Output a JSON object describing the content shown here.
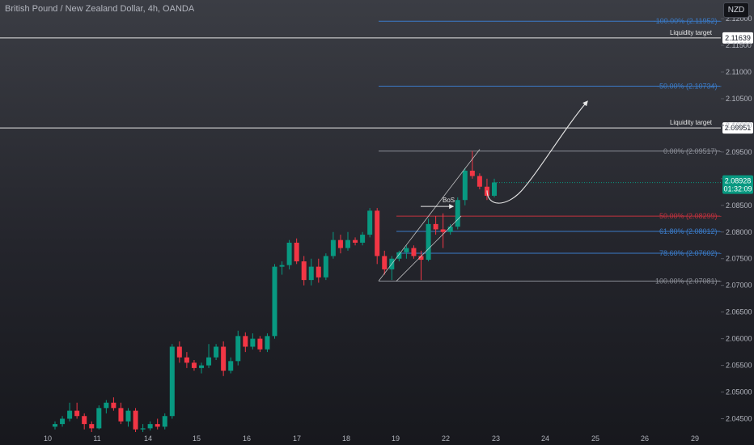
{
  "header": {
    "title": "British Pound / New Zealand Dollar, 4h, OANDA",
    "currency": "NZD"
  },
  "colors": {
    "background": "#1b1c22",
    "up": "#089981",
    "down": "#f23645",
    "fib_blue": "#3a7bc8",
    "fib_red": "#c2313d",
    "fib_gray": "#8a8d96",
    "white": "#e6e6e6",
    "badge_green": "#089981"
  },
  "chart_data": {
    "type": "candlestick",
    "symbol": "GBPNZD",
    "timeframe": "4h",
    "ylim": [
      2.0425,
      2.1235
    ],
    "x_ticks": [
      "10",
      "11",
      "14",
      "15",
      "16",
      "17",
      "18",
      "19",
      "22",
      "23",
      "24",
      "25",
      "26",
      "29"
    ],
    "y_ticks": [
      2.045,
      2.05,
      2.055,
      2.06,
      2.065,
      2.07,
      2.075,
      2.08,
      2.085,
      2.09,
      2.095,
      2.1,
      2.105,
      2.11,
      2.115,
      2.12
    ],
    "y_tick_labels": [
      "2.04500",
      "2.05000",
      "2.05500",
      "2.06000",
      "2.06500",
      "2.07000",
      "2.07500",
      "2.08000",
      "2.08500",
      "2.09000",
      "2.09500",
      "2.10000",
      "2.10500",
      "2.11000",
      "2.11500",
      "2.12000"
    ],
    "candles": [
      {
        "o": 2.0435,
        "h": 2.0445,
        "l": 2.043,
        "c": 2.044
      },
      {
        "o": 2.044,
        "h": 2.0455,
        "l": 2.0435,
        "c": 2.045
      },
      {
        "o": 2.045,
        "h": 2.048,
        "l": 2.0445,
        "c": 2.0465
      },
      {
        "o": 2.0465,
        "h": 2.048,
        "l": 2.045,
        "c": 2.0455
      },
      {
        "o": 2.0455,
        "h": 2.046,
        "l": 2.043,
        "c": 2.044
      },
      {
        "o": 2.044,
        "h": 2.0445,
        "l": 2.0425,
        "c": 2.0432
      },
      {
        "o": 2.0432,
        "h": 2.0475,
        "l": 2.043,
        "c": 2.047
      },
      {
        "o": 2.047,
        "h": 2.0485,
        "l": 2.046,
        "c": 2.048
      },
      {
        "o": 2.048,
        "h": 2.049,
        "l": 2.0465,
        "c": 2.047
      },
      {
        "o": 2.047,
        "h": 2.048,
        "l": 2.044,
        "c": 2.0445
      },
      {
        "o": 2.0445,
        "h": 2.047,
        "l": 2.0435,
        "c": 2.0465
      },
      {
        "o": 2.0465,
        "h": 2.047,
        "l": 2.0425,
        "c": 2.043
      },
      {
        "o": 2.043,
        "h": 2.044,
        "l": 2.0425,
        "c": 2.0432
      },
      {
        "o": 2.0432,
        "h": 2.0445,
        "l": 2.0428,
        "c": 2.044
      },
      {
        "o": 2.044,
        "h": 2.045,
        "l": 2.043,
        "c": 2.0435
      },
      {
        "o": 2.0435,
        "h": 2.046,
        "l": 2.043,
        "c": 2.0455
      },
      {
        "o": 2.0455,
        "h": 2.059,
        "l": 2.045,
        "c": 2.0585
      },
      {
        "o": 2.0585,
        "h": 2.0595,
        "l": 2.0555,
        "c": 2.0565
      },
      {
        "o": 2.0565,
        "h": 2.0575,
        "l": 2.0545,
        "c": 2.0555
      },
      {
        "o": 2.0555,
        "h": 2.056,
        "l": 2.054,
        "c": 2.0545
      },
      {
        "o": 2.0545,
        "h": 2.0555,
        "l": 2.0535,
        "c": 2.055
      },
      {
        "o": 2.055,
        "h": 2.059,
        "l": 2.0545,
        "c": 2.0565
      },
      {
        "o": 2.0565,
        "h": 2.059,
        "l": 2.056,
        "c": 2.0585
      },
      {
        "o": 2.0585,
        "h": 2.0595,
        "l": 2.053,
        "c": 2.054
      },
      {
        "o": 2.054,
        "h": 2.0565,
        "l": 2.0535,
        "c": 2.0558
      },
      {
        "o": 2.0558,
        "h": 2.0615,
        "l": 2.055,
        "c": 2.0605
      },
      {
        "o": 2.0605,
        "h": 2.0612,
        "l": 2.0575,
        "c": 2.0585
      },
      {
        "o": 2.0585,
        "h": 2.061,
        "l": 2.058,
        "c": 2.06
      },
      {
        "o": 2.06,
        "h": 2.0605,
        "l": 2.0575,
        "c": 2.058
      },
      {
        "o": 2.058,
        "h": 2.061,
        "l": 2.0575,
        "c": 2.0605
      },
      {
        "o": 2.0605,
        "h": 2.074,
        "l": 2.06,
        "c": 2.0735
      },
      {
        "o": 2.0735,
        "h": 2.0745,
        "l": 2.072,
        "c": 2.0738
      },
      {
        "o": 2.0738,
        "h": 2.0785,
        "l": 2.073,
        "c": 2.078
      },
      {
        "o": 2.078,
        "h": 2.0788,
        "l": 2.074,
        "c": 2.0745
      },
      {
        "o": 2.0745,
        "h": 2.0755,
        "l": 2.07,
        "c": 2.071
      },
      {
        "o": 2.071,
        "h": 2.075,
        "l": 2.07,
        "c": 2.0735
      },
      {
        "o": 2.0735,
        "h": 2.075,
        "l": 2.0705,
        "c": 2.0715
      },
      {
        "o": 2.0715,
        "h": 2.076,
        "l": 2.071,
        "c": 2.0755
      },
      {
        "o": 2.0755,
        "h": 2.08,
        "l": 2.075,
        "c": 2.0785
      },
      {
        "o": 2.0785,
        "h": 2.0795,
        "l": 2.076,
        "c": 2.077
      },
      {
        "o": 2.077,
        "h": 2.08,
        "l": 2.0765,
        "c": 2.0785
      },
      {
        "o": 2.0785,
        "h": 2.079,
        "l": 2.0775,
        "c": 2.078
      },
      {
        "o": 2.078,
        "h": 2.08,
        "l": 2.0775,
        "c": 2.0795
      },
      {
        "o": 2.0795,
        "h": 2.0845,
        "l": 2.079,
        "c": 2.084
      },
      {
        "o": 2.084,
        "h": 2.0845,
        "l": 2.074,
        "c": 2.0755
      },
      {
        "o": 2.0755,
        "h": 2.0765,
        "l": 2.072,
        "c": 2.073
      },
      {
        "o": 2.073,
        "h": 2.0755,
        "l": 2.071,
        "c": 2.075
      },
      {
        "o": 2.075,
        "h": 2.0765,
        "l": 2.0745,
        "c": 2.0762
      },
      {
        "o": 2.0762,
        "h": 2.0775,
        "l": 2.075,
        "c": 2.077
      },
      {
        "o": 2.077,
        "h": 2.0775,
        "l": 2.075,
        "c": 2.0755
      },
      {
        "o": 2.0755,
        "h": 2.0765,
        "l": 2.071,
        "c": 2.0748
      },
      {
        "o": 2.0748,
        "h": 2.0825,
        "l": 2.0745,
        "c": 2.0815
      },
      {
        "o": 2.0815,
        "h": 2.083,
        "l": 2.0795,
        "c": 2.0805
      },
      {
        "o": 2.0805,
        "h": 2.0835,
        "l": 2.077,
        "c": 2.08
      },
      {
        "o": 2.08,
        "h": 2.0815,
        "l": 2.0795,
        "c": 2.081
      },
      {
        "o": 2.081,
        "h": 2.0865,
        "l": 2.0805,
        "c": 2.086
      },
      {
        "o": 2.086,
        "h": 2.092,
        "l": 2.085,
        "c": 2.0915
      },
      {
        "o": 2.0915,
        "h": 2.0952,
        "l": 2.09,
        "c": 2.0905
      },
      {
        "o": 2.0905,
        "h": 2.091,
        "l": 2.088,
        "c": 2.0885
      },
      {
        "o": 2.0885,
        "h": 2.09,
        "l": 2.086,
        "c": 2.0868
      },
      {
        "o": 2.0868,
        "h": 2.09,
        "l": 2.0865,
        "c": 2.0893
      }
    ],
    "fib_levels": [
      {
        "label": "-100.00% (2.11952)",
        "value": 2.11952,
        "style": "blue"
      },
      {
        "label": "-50.00% (2.10734)",
        "value": 2.10734,
        "style": "blue"
      },
      {
        "label": "0.00% (2.09517)",
        "value": 2.09517,
        "style": "gray"
      },
      {
        "label": "50.00% (2.08299)",
        "value": 2.08299,
        "style": "red"
      },
      {
        "label": "61.80% (2.08012)",
        "value": 2.08012,
        "style": "blue"
      },
      {
        "label": "78.60% (2.07602)",
        "value": 2.07602,
        "style": "blue"
      },
      {
        "label": "100.00% (2.07081)",
        "value": 2.07081,
        "style": "gray"
      }
    ],
    "horizontal_lines": [
      {
        "label": "Liquidity target",
        "value": 2.11639,
        "price_label": "2.11639"
      },
      {
        "label": "Liquidity target",
        "value": 2.09951,
        "price_label": "2.09951"
      }
    ],
    "annotations": {
      "bos_label": "BoS"
    },
    "last_price": {
      "value": 2.08928,
      "price_label": "2.08928",
      "countdown": "01:32:09"
    }
  }
}
